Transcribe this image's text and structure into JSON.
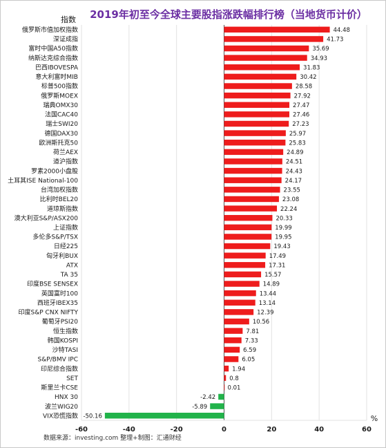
{
  "colors": {
    "title": "#6b2fa3",
    "positive": "#ee1c1c",
    "negative": "#21b34a",
    "grid": "#e2e2e2",
    "axis": "#555555"
  },
  "chart_data": {
    "type": "bar",
    "orientation": "horizontal",
    "title": "2019年初至今全球主要股指涨跌幅排行榜（当地货币计价）",
    "ylabel": "指数",
    "xlabel": "%",
    "xlim": [
      -60,
      60
    ],
    "xticks": [
      -60,
      -40,
      -20,
      0,
      20,
      40,
      60
    ],
    "grid": true,
    "source": "数据来源：investing.com    整理+制图：汇通财经",
    "categories": [
      "俄罗斯市值加权指数",
      "深证成指",
      "富时中国A50指数",
      "纳斯达克综合指数",
      "巴西IBOVESPA",
      "意大利富时MIB",
      "标普500指数",
      "俄罗斯MOEX",
      "瑞典OMX30",
      "法国CAC40",
      "瑞士SWI20",
      "德国DAX30",
      "欧洲斯托克50",
      "荷兰AEX",
      "道沪指数",
      "罗素2000小盘股",
      "土耳其ISE National-100",
      "台湾加权指数",
      "比利时BEL20",
      "道琼斯指数",
      "澳大利亚S&P/ASX200",
      "上证指数",
      "多伦多S&P/TSX",
      "日经225",
      "匈牙利BUX",
      "ATX",
      "TA 35",
      "印度BSE SENSEX",
      "英国富时100",
      "西班牙IBEX35",
      "印度S&P CNX NIFTY",
      "葡萄牙PSI20",
      "恒生指数",
      "韩国KOSPI",
      "沙特TASI",
      "S&P/BMV IPC",
      "印尼综合指数",
      "SET",
      "斯里兰卡CSE",
      "HNX 30",
      "波兰WIG20",
      "VIX恐慌指数"
    ],
    "values": [
      44.48,
      41.73,
      35.69,
      34.93,
      31.83,
      30.42,
      28.58,
      27.92,
      27.47,
      27.46,
      27.23,
      25.97,
      25.83,
      24.89,
      24.51,
      24.43,
      24.17,
      23.55,
      23.08,
      22.24,
      20.33,
      19.99,
      19.95,
      19.43,
      17.49,
      17.31,
      15.57,
      14.89,
      13.44,
      13.14,
      12.39,
      10.56,
      7.81,
      7.33,
      6.59,
      6.05,
      1.94,
      0.8,
      0.01,
      -2.42,
      -5.89,
      -50.16
    ]
  }
}
